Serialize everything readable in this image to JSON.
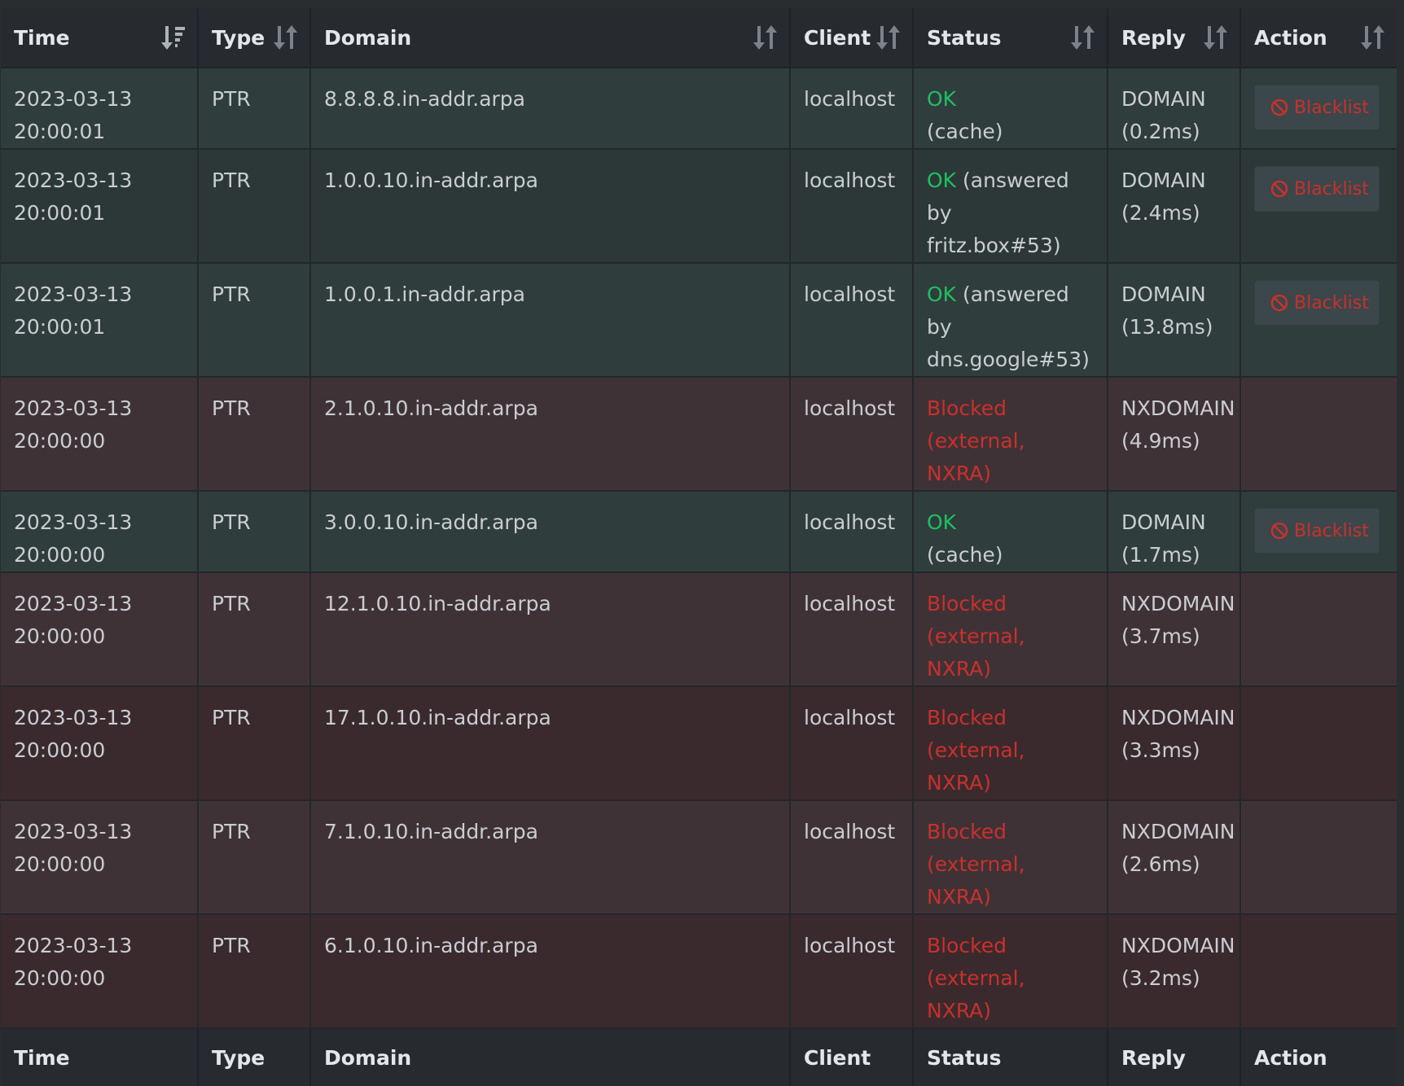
{
  "table": {
    "headers": [
      "Time",
      "Type",
      "Domain",
      "Client",
      "Status",
      "Reply",
      "Action"
    ],
    "footers": [
      "Time",
      "Type",
      "Domain",
      "Client",
      "Status",
      "Reply",
      "Action"
    ],
    "sort_icons": [
      "sort-amount-desc-icon",
      "sort-icon",
      "sort-icon",
      "sort-icon",
      "sort-icon",
      "sort-icon",
      "sort-icon"
    ],
    "rows": [
      {
        "date": "2023-03-13",
        "time": "20:00:01",
        "type": "PTR",
        "domain": "8.8.8.8.in-addr.arpa",
        "client": "localhost",
        "status_main": "OK",
        "status_inline": "",
        "status_line2": "(cache)",
        "reply_type": "DOMAIN",
        "reply_time": "(0.2ms)",
        "action": "Blacklist"
      },
      {
        "date": "2023-03-13",
        "time": "20:00:01",
        "type": "PTR",
        "domain": "1.0.0.10.in-addr.arpa",
        "client": "localhost",
        "status_main": "OK",
        "status_inline": " (answered by",
        "status_line2": "fritz.box#53)",
        "reply_type": "DOMAIN",
        "reply_time": "(2.4ms)",
        "action": "Blacklist"
      },
      {
        "date": "2023-03-13",
        "time": "20:00:01",
        "type": "PTR",
        "domain": "1.0.0.1.in-addr.arpa",
        "client": "localhost",
        "status_main": "OK",
        "status_inline": " (answered by",
        "status_line2": "dns.google#53)",
        "reply_type": "DOMAIN",
        "reply_time": "(13.8ms)",
        "action": "Blacklist"
      },
      {
        "date": "2023-03-13",
        "time": "20:00:00",
        "type": "PTR",
        "domain": "2.1.0.10.in-addr.arpa",
        "client": "localhost",
        "status_main": "Blocked",
        "status_inline": "",
        "status_line2": "(external, NXRA)",
        "reply_type": "NXDOMAIN",
        "reply_time": "(4.9ms)",
        "action": ""
      },
      {
        "date": "2023-03-13",
        "time": "20:00:00",
        "type": "PTR",
        "domain": "3.0.0.10.in-addr.arpa",
        "client": "localhost",
        "status_main": "OK",
        "status_inline": "",
        "status_line2": "(cache)",
        "reply_type": "DOMAIN",
        "reply_time": "(1.7ms)",
        "action": "Blacklist"
      },
      {
        "date": "2023-03-13",
        "time": "20:00:00",
        "type": "PTR",
        "domain": "12.1.0.10.in-addr.arpa",
        "client": "localhost",
        "status_main": "Blocked",
        "status_inline": "",
        "status_line2": "(external, NXRA)",
        "reply_type": "NXDOMAIN",
        "reply_time": "(3.7ms)",
        "action": ""
      },
      {
        "date": "2023-03-13",
        "time": "20:00:00",
        "type": "PTR",
        "domain": "17.1.0.10.in-addr.arpa",
        "client": "localhost",
        "status_main": "Blocked",
        "status_inline": "",
        "status_line2": "(external, NXRA)",
        "reply_type": "NXDOMAIN",
        "reply_time": "(3.3ms)",
        "action": ""
      },
      {
        "date": "2023-03-13",
        "time": "20:00:00",
        "type": "PTR",
        "domain": "7.1.0.10.in-addr.arpa",
        "client": "localhost",
        "status_main": "Blocked",
        "status_inline": "",
        "status_line2": "(external, NXRA)",
        "reply_type": "NXDOMAIN",
        "reply_time": "(2.6ms)",
        "action": ""
      },
      {
        "date": "2023-03-13",
        "time": "20:00:00",
        "type": "PTR",
        "domain": "6.1.0.10.in-addr.arpa",
        "client": "localhost",
        "status_main": "Blocked",
        "status_inline": "",
        "status_line2": "(external, NXRA)",
        "reply_type": "NXDOMAIN",
        "reply_time": "(3.2ms)",
        "action": ""
      }
    ]
  },
  "colors": {
    "ok": "#1fbf62",
    "blocked": "#c9302c",
    "allowed_row": "#2f3d3c",
    "blocked_row": "#3a2a2d",
    "header_bg": "#272b30"
  }
}
